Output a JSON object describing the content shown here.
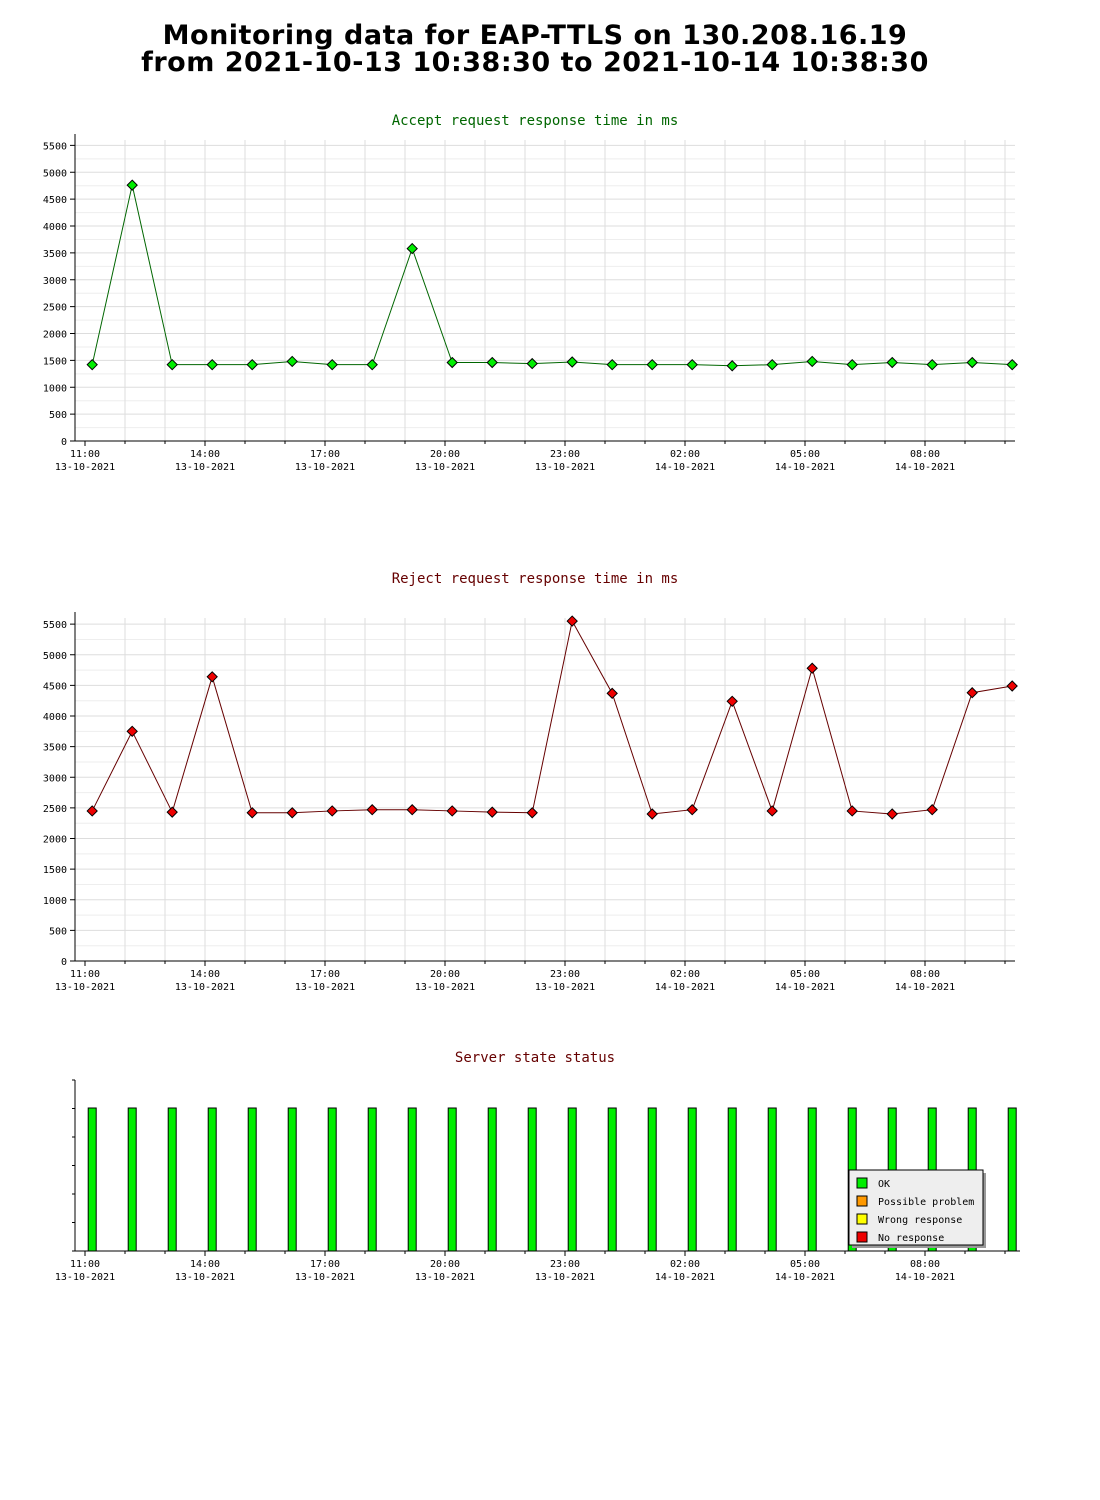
{
  "page_title": {
    "line1": "Monitoring data for EAP-TTLS on 130.208.16.19",
    "line2": "from 2021-10-13 10:38:30 to 2021-10-14 10:38:30"
  },
  "colors": {
    "accept_title": "#006600",
    "reject_title": "#660000",
    "status_title": "#660000",
    "ok": "#00ee00",
    "possible_problem": "#ff9900",
    "wrong_response": "#ffff00",
    "no_response": "#ee0000"
  },
  "x_ticks": [
    {
      "time": "11:00",
      "date": "13-10-2021"
    },
    {
      "time": "14:00",
      "date": "13-10-2021"
    },
    {
      "time": "17:00",
      "date": "13-10-2021"
    },
    {
      "time": "20:00",
      "date": "13-10-2021"
    },
    {
      "time": "23:00",
      "date": "13-10-2021"
    },
    {
      "time": "02:00",
      "date": "14-10-2021"
    },
    {
      "time": "05:00",
      "date": "14-10-2021"
    },
    {
      "time": "08:00",
      "date": "14-10-2021"
    }
  ],
  "chart_data": [
    {
      "type": "line",
      "title": "Accept request response time in ms",
      "x_unit": "hours since 11:00 13-10-2021",
      "x_range": [
        0,
        23.5
      ],
      "ylim": [
        0,
        5600
      ],
      "y_ticks": [
        0,
        500,
        1000,
        1500,
        2000,
        2500,
        3000,
        3500,
        4000,
        4500,
        5000,
        5500
      ],
      "grid": true,
      "marker_color": "#00ee00",
      "line_color": "#006600",
      "x": [
        0.43,
        1.43,
        2.43,
        3.43,
        4.43,
        5.43,
        6.43,
        7.43,
        8.43,
        9.43,
        10.43,
        11.43,
        12.43,
        13.43,
        14.43,
        15.43,
        16.43,
        17.43,
        18.43,
        19.43,
        20.43,
        21.43,
        22.43,
        23.43
      ],
      "values": [
        1420,
        4760,
        1420,
        1420,
        1420,
        1480,
        1420,
        1420,
        3580,
        1460,
        1460,
        1440,
        1470,
        1420,
        1420,
        1420,
        1400,
        1420,
        1480,
        1420,
        1460,
        1420,
        1460,
        1420
      ]
    },
    {
      "type": "line",
      "title": "Reject request response time in ms",
      "x_unit": "hours since 11:00 13-10-2021",
      "x_range": [
        0,
        23.5
      ],
      "ylim": [
        0,
        5600
      ],
      "y_ticks": [
        0,
        500,
        1000,
        1500,
        2000,
        2500,
        3000,
        3500,
        4000,
        4500,
        5000,
        5500
      ],
      "grid": true,
      "marker_color": "#ee0000",
      "line_color": "#660000",
      "x": [
        0.43,
        1.43,
        2.43,
        3.43,
        4.43,
        5.43,
        6.43,
        7.43,
        8.43,
        9.43,
        10.43,
        11.43,
        12.43,
        13.43,
        14.43,
        15.43,
        16.43,
        17.43,
        18.43,
        19.43,
        20.43,
        21.43,
        22.43,
        23.43
      ],
      "values": [
        2450,
        3750,
        2430,
        4640,
        2420,
        2420,
        2450,
        2470,
        2470,
        2450,
        2430,
        2420,
        5550,
        4370,
        2400,
        2470,
        4240,
        2450,
        4780,
        2450,
        2400,
        2470,
        4380,
        4490
      ]
    },
    {
      "type": "bar",
      "title": "Server state status",
      "x_unit": "hours since 11:00 13-10-2021",
      "x_range": [
        0,
        23.5
      ],
      "x": [
        0.43,
        1.43,
        2.43,
        3.43,
        4.43,
        5.43,
        6.43,
        7.43,
        8.43,
        9.43,
        10.43,
        11.43,
        12.43,
        13.43,
        14.43,
        15.43,
        16.43,
        17.43,
        18.43,
        19.43,
        20.43,
        21.43,
        22.43,
        23.43
      ],
      "states": [
        "OK",
        "OK",
        "OK",
        "OK",
        "OK",
        "OK",
        "OK",
        "OK",
        "OK",
        "OK",
        "OK",
        "OK",
        "OK",
        "OK",
        "OK",
        "OK",
        "OK",
        "OK",
        "OK",
        "OK",
        "OK",
        "OK",
        "OK",
        "OK"
      ],
      "legend": {
        "placement": "bottom-right",
        "entries": [
          {
            "label": "OK",
            "color": "#00ee00"
          },
          {
            "label": "Possible problem",
            "color": "#ff9900"
          },
          {
            "label": "Wrong response",
            "color": "#ffff00"
          },
          {
            "label": "No response",
            "color": "#ee0000"
          }
        ]
      }
    }
  ]
}
